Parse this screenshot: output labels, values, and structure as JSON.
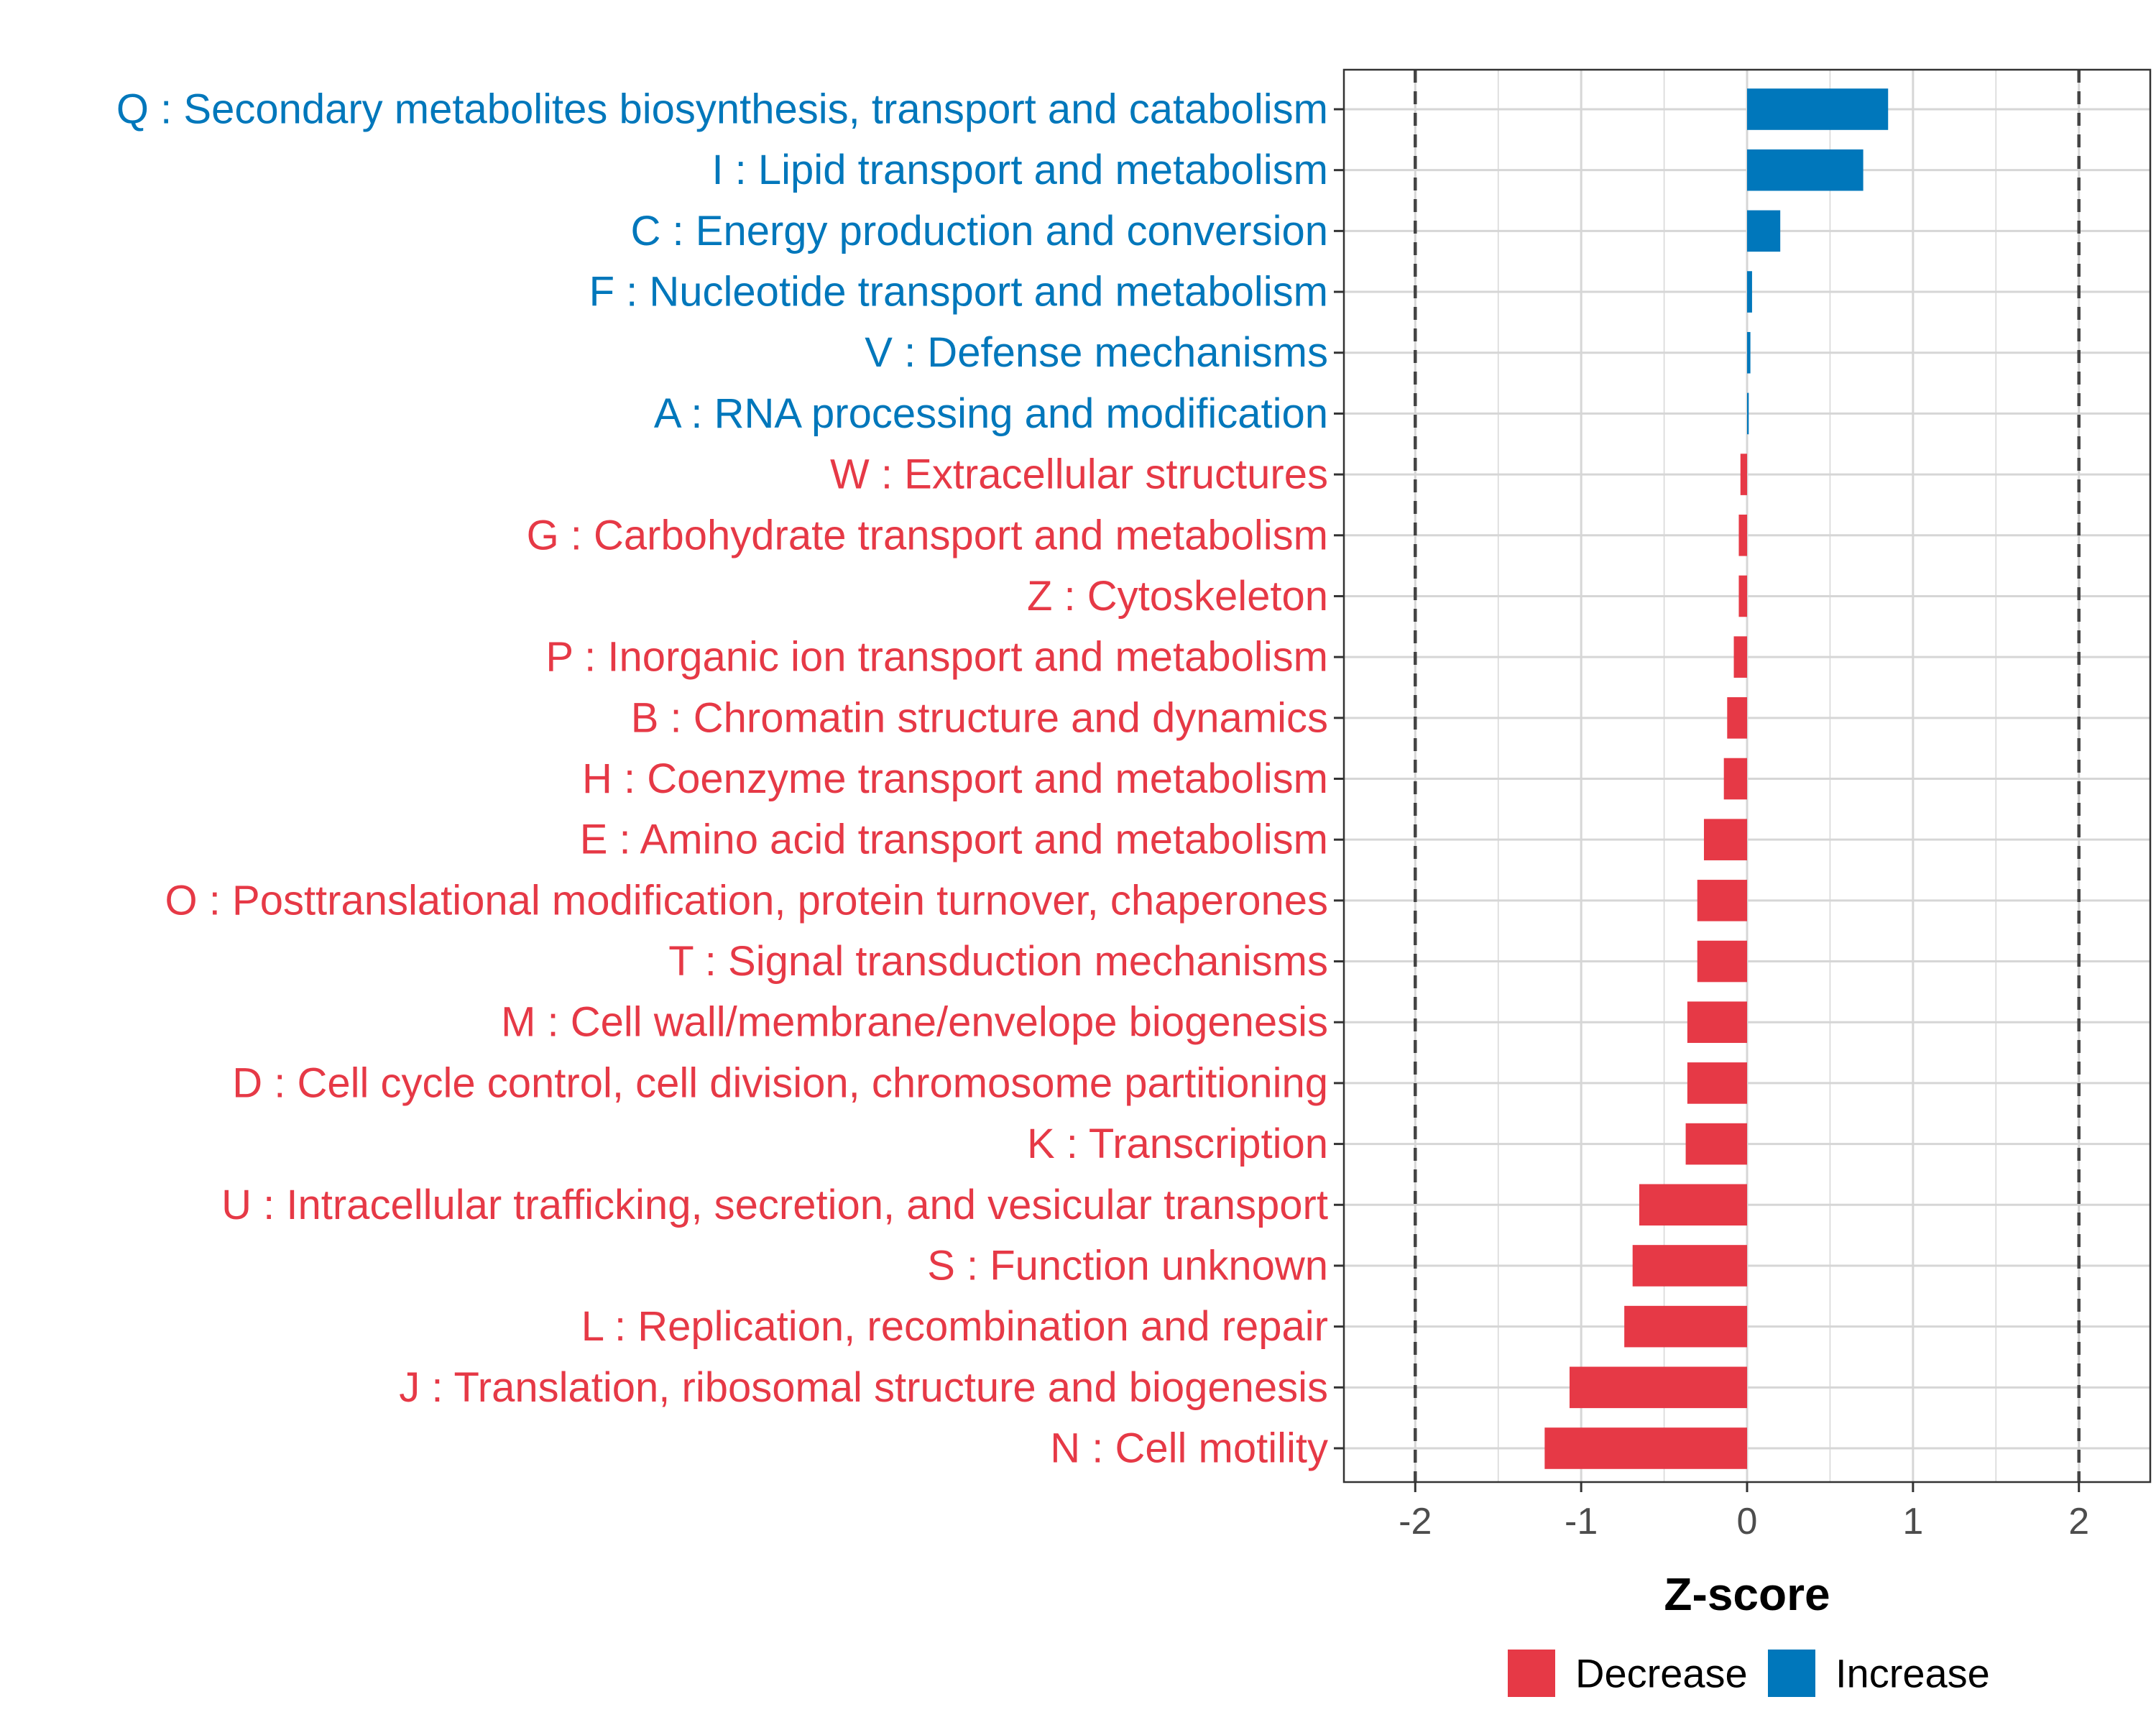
{
  "chart_data": {
    "type": "bar",
    "orientation": "horizontal",
    "title": "",
    "xlabel": "Z-score",
    "ylabel": "",
    "xlim": [
      -2.43,
      2.43
    ],
    "xticks": [
      -2,
      -1,
      0,
      1,
      2
    ],
    "xtick_labels": [
      "-2",
      "-1",
      "0",
      "1",
      "2"
    ],
    "reference_lines": [
      -2,
      2
    ],
    "grid": true,
    "colors": {
      "Decrease": "#e63946",
      "Increase": "#0077bb"
    },
    "legend": {
      "position": "bottom",
      "entries": [
        {
          "name": "Decrease",
          "color": "#e63946"
        },
        {
          "name": "Increase",
          "color": "#0077bb"
        }
      ]
    },
    "categories": [
      "Q : Secondary metabolites biosynthesis, transport and catabolism",
      "I : Lipid transport and metabolism",
      "C : Energy production and conversion",
      "F : Nucleotide transport and metabolism",
      "V : Defense mechanisms",
      "A : RNA processing and modification",
      "W : Extracellular structures",
      "G : Carbohydrate transport and metabolism",
      "Z : Cytoskeleton",
      "P : Inorganic ion transport and metabolism",
      "B : Chromatin structure and dynamics",
      "H : Coenzyme transport and metabolism",
      "E : Amino acid transport and metabolism",
      "O : Posttranslational modification, protein turnover, chaperones",
      "T : Signal transduction mechanisms",
      "M : Cell wall/membrane/envelope biogenesis",
      "D : Cell cycle control, cell division, chromosome partitioning",
      "K : Transcription",
      "U : Intracellular trafficking, secretion, and vesicular transport",
      "S : Function unknown",
      "L : Replication, recombination and repair",
      "J : Translation, ribosomal structure and biogenesis",
      "N : Cell motility"
    ],
    "values": [
      0.85,
      0.7,
      0.2,
      0.03,
      0.02,
      0.01,
      -0.04,
      -0.05,
      -0.05,
      -0.08,
      -0.12,
      -0.14,
      -0.26,
      -0.3,
      -0.3,
      -0.36,
      -0.36,
      -0.37,
      -0.65,
      -0.69,
      -0.74,
      -1.07,
      -1.22
    ],
    "groups": [
      "Increase",
      "Increase",
      "Increase",
      "Increase",
      "Increase",
      "Increase",
      "Decrease",
      "Decrease",
      "Decrease",
      "Decrease",
      "Decrease",
      "Decrease",
      "Decrease",
      "Decrease",
      "Decrease",
      "Decrease",
      "Decrease",
      "Decrease",
      "Decrease",
      "Decrease",
      "Decrease",
      "Decrease",
      "Decrease"
    ]
  }
}
